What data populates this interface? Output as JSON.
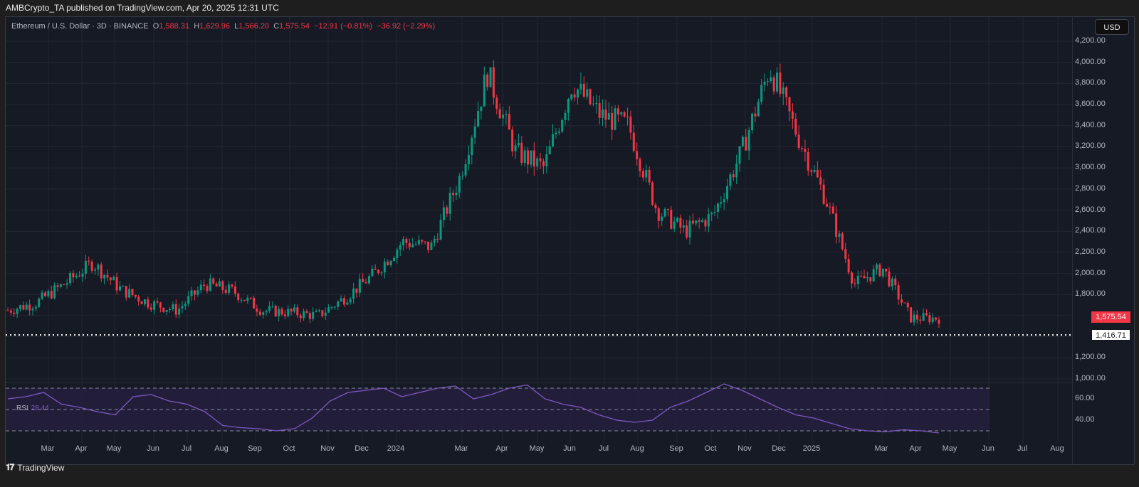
{
  "header": {
    "published_line": "AMBCrypto_TA published on TradingView.com, Apr 20, 2025 12:31 UTC"
  },
  "legend": {
    "symbol": "Ethereum / U.S. Dollar · 3D · BINANCE",
    "open_label": "O",
    "open": "1,588.31",
    "high_label": "H",
    "high": "1,629.96",
    "low_label": "L",
    "low": "1,566.20",
    "close_label": "C",
    "close": "1,575.54",
    "change": "−12.91 (−0.81%)",
    "change2": "−36.92 (−2.29%)"
  },
  "axis": {
    "currency": "USD",
    "price_ticks": [
      "4,200.00",
      "4,000.00",
      "3,800.00",
      "3,600.00",
      "3,400.00",
      "3,200.00",
      "3,000.00",
      "2,800.00",
      "2,600.00",
      "2,400.00",
      "2,200.00",
      "2,000.00",
      "1,800.00",
      "1,200.00",
      "1,000.00"
    ],
    "last_price_tag": "1,575.54",
    "low_line_tag": "1,416.71",
    "rsi_ticks": [
      "60.00",
      "40.00"
    ]
  },
  "time_axis": {
    "labels": [
      "Mar",
      "Apr",
      "May",
      "Jun",
      "Jul",
      "Aug",
      "Sep",
      "Oct",
      "Nov",
      "Dec",
      "2024",
      "Mar",
      "Apr",
      "May",
      "Jun",
      "Jul",
      "Aug",
      "Sep",
      "Oct",
      "Nov",
      "Dec",
      "2025",
      "Mar",
      "Apr",
      "May",
      "Jun",
      "Jul",
      "Aug"
    ]
  },
  "rsi": {
    "label": "RSI",
    "value": "28.44"
  },
  "footer": {
    "brand": "TradingView"
  },
  "colors": {
    "up": "#089981",
    "down": "#f23645",
    "rsi_line": "#7e57c2",
    "background": "#161a25"
  },
  "chart_data": {
    "type": "candlestick",
    "title": "Ethereum / U.S. Dollar · 3D · BINANCE",
    "xlabel": "",
    "ylabel": "USD",
    "ylim": [
      1000,
      4200
    ],
    "x_range": [
      "Feb 2023",
      "Aug 2025"
    ],
    "last_close": 1575.54,
    "horizontal_line": 1416.71,
    "approx_close_path": [
      {
        "date": "2023-02",
        "close": 1650
      },
      {
        "date": "2023-03",
        "close": 1720
      },
      {
        "date": "2023-04",
        "close": 1900
      },
      {
        "date": "2023-04-15",
        "close": 2100
      },
      {
        "date": "2023-05",
        "close": 1850
      },
      {
        "date": "2023-06",
        "close": 1720
      },
      {
        "date": "2023-06-15",
        "close": 1650
      },
      {
        "date": "2023-07",
        "close": 1900
      },
      {
        "date": "2023-08",
        "close": 1830
      },
      {
        "date": "2023-08-20",
        "close": 1650
      },
      {
        "date": "2023-09",
        "close": 1630
      },
      {
        "date": "2023-10",
        "close": 1600
      },
      {
        "date": "2023-10-25",
        "close": 1780
      },
      {
        "date": "2023-11",
        "close": 2000
      },
      {
        "date": "2023-12",
        "close": 2300
      },
      {
        "date": "2024-01",
        "close": 2250
      },
      {
        "date": "2024-02",
        "close": 2900
      },
      {
        "date": "2024-03",
        "close": 3900
      },
      {
        "date": "2024-04",
        "close": 3150
      },
      {
        "date": "2024-05",
        "close": 3000
      },
      {
        "date": "2024-05-25",
        "close": 3800
      },
      {
        "date": "2024-06",
        "close": 3500
      },
      {
        "date": "2024-07",
        "close": 3400
      },
      {
        "date": "2024-08",
        "close": 2600
      },
      {
        "date": "2024-09",
        "close": 2400
      },
      {
        "date": "2024-10",
        "close": 2550
      },
      {
        "date": "2024-11",
        "close": 3150
      },
      {
        "date": "2024-12",
        "close": 3950
      },
      {
        "date": "2025-01",
        "close": 3300
      },
      {
        "date": "2025-02",
        "close": 2700
      },
      {
        "date": "2025-03",
        "close": 1900
      },
      {
        "date": "2025-03-25",
        "close": 2050
      },
      {
        "date": "2025-04",
        "close": 1580
      },
      {
        "date": "2025-04-20",
        "close": 1575.54
      }
    ],
    "rsi_series": {
      "name": "RSI",
      "last": 28.44,
      "bands": [
        30,
        50,
        70
      ],
      "approx_values": [
        60,
        62,
        66,
        55,
        52,
        48,
        45,
        62,
        64,
        58,
        55,
        48,
        35,
        33,
        32,
        30,
        32,
        42,
        58,
        66,
        68,
        70,
        62,
        66,
        70,
        72,
        60,
        64,
        70,
        73,
        60,
        55,
        52,
        45,
        40,
        38,
        40,
        52,
        58,
        66,
        74,
        68,
        60,
        52,
        45,
        42,
        37,
        32,
        30,
        29,
        31,
        30,
        28
      ]
    },
    "rsi_ticks": [
      60,
      40
    ]
  }
}
